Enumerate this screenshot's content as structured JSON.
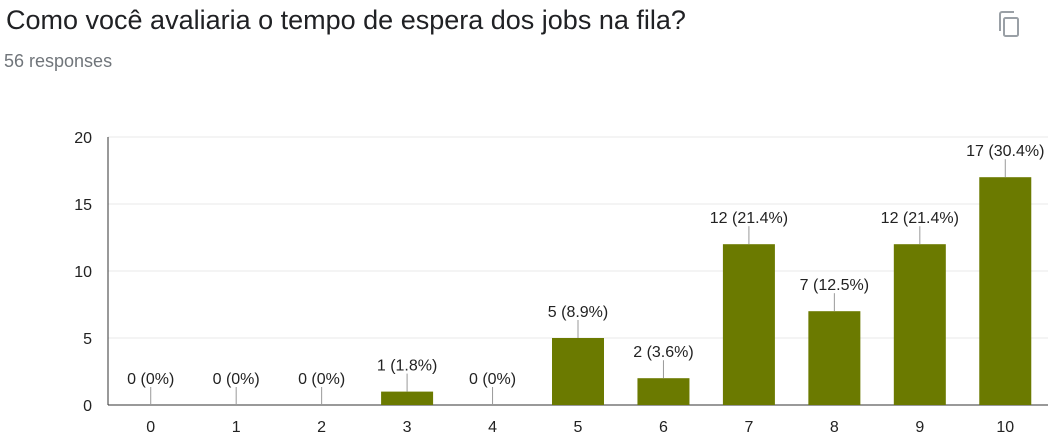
{
  "question": {
    "title": "Como você avaliaria o tempo de espera dos jobs na fila?",
    "responses": "56 responses"
  },
  "toolbar": {
    "copy_icon": "copy-icon"
  },
  "colors": {
    "bar": "#6b7a00",
    "grid": "#e8e8e8",
    "axis": "#333333",
    "leader": "#999999",
    "icon": "#9aa0a6"
  },
  "chart_data": {
    "type": "bar",
    "categories": [
      "0",
      "1",
      "2",
      "3",
      "4",
      "5",
      "6",
      "7",
      "8",
      "9",
      "10"
    ],
    "values": [
      0,
      0,
      0,
      1,
      0,
      5,
      2,
      12,
      7,
      12,
      17
    ],
    "data_labels": [
      "0 (0%)",
      "0 (0%)",
      "0 (0%)",
      "1 (1.8%)",
      "0 (0%)",
      "5 (8.9%)",
      "2 (3.6%)",
      "12 (21.4%)",
      "7 (12.5%)",
      "12 (21.4%)",
      "17 (30.4%)"
    ],
    "y_ticks": [
      0,
      5,
      10,
      15,
      20
    ],
    "ylim": [
      0,
      20
    ],
    "grid": true,
    "legend": "none",
    "title": "",
    "xlabel": "",
    "ylabel": ""
  }
}
